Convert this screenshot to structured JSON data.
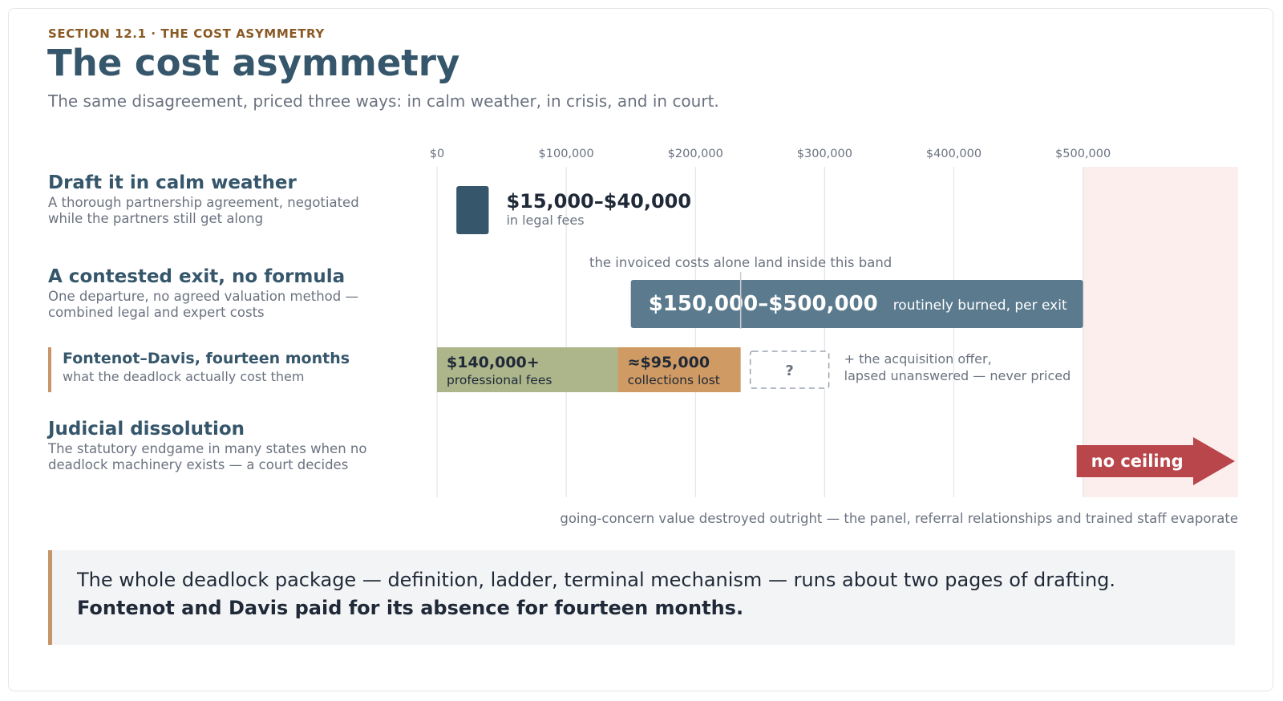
{
  "header": {
    "kicker": "SECTION 12.1  ·  THE COST ASYMMETRY",
    "title": "The cost asymmetry",
    "subtitle": "The same disagreement, priced three ways: in calm weather, in crisis, and in court."
  },
  "rows": {
    "calm": {
      "title": "Draft it in calm weather",
      "desc": "A thorough partnership agreement, negotiated while the partners still get along"
    },
    "contested": {
      "title": "A contested exit, no formula",
      "desc": "One departure, no agreed valuation method — combined legal and expert costs"
    },
    "case": {
      "title": "Fontenot–Davis, fourteen months",
      "desc": "what the deadlock actually cost them"
    },
    "dissolution": {
      "title": "Judicial dissolution",
      "desc": "The statutory endgame in many states when no deadlock machinery exists — a court decides"
    }
  },
  "chart_data": {
    "type": "bar",
    "orientation": "horizontal",
    "x_ticks": [
      0,
      100000,
      200000,
      300000,
      400000,
      500000
    ],
    "x_tick_labels": [
      "$0",
      "$100,000",
      "$200,000",
      "$300,000",
      "$400,000",
      "$500,000"
    ],
    "xlim": [
      0,
      620000
    ],
    "grid": true,
    "ranges": [
      {
        "row": "calm",
        "low": 15000,
        "high": 40000,
        "label": "$15,000–$40,000",
        "sublabel": "in legal fees",
        "color": "#35566b"
      },
      {
        "row": "contested",
        "low": 150000,
        "high": 500000,
        "label": "$150,000–$500,000",
        "sublabel": "routinely burned, per exit",
        "color": "#5b7a8e"
      }
    ],
    "case_segments": [
      {
        "row": "case",
        "start": 0,
        "end": 140000,
        "label": "$140,000+",
        "sublabel": "professional fees",
        "color": "#adb58b"
      },
      {
        "row": "case",
        "start": 140000,
        "end": 235000,
        "label": "≈$95,000",
        "sublabel": "collections lost",
        "color": "#cf9a63"
      }
    ],
    "unknown": {
      "label": "?",
      "note_line1": "+ the acquisition offer,",
      "note_line2": "lapsed unanswered — never priced"
    },
    "marker_value": 235000,
    "band_note": "the invoiced costs alone land inside this band",
    "no_ceiling": {
      "start": 500000,
      "label": "no ceiling",
      "color": "#b8464a",
      "zone_color": "#fdeeee"
    },
    "footnote": "going-concern value destroyed outright — the panel, referral relationships and trained staff evaporate"
  },
  "callout": {
    "line1": "The whole deadlock package — definition, ladder, terminal mechanism — runs about two pages of drafting.",
    "line2": "Fontenot and Davis paid for its absence for fourteen months."
  }
}
